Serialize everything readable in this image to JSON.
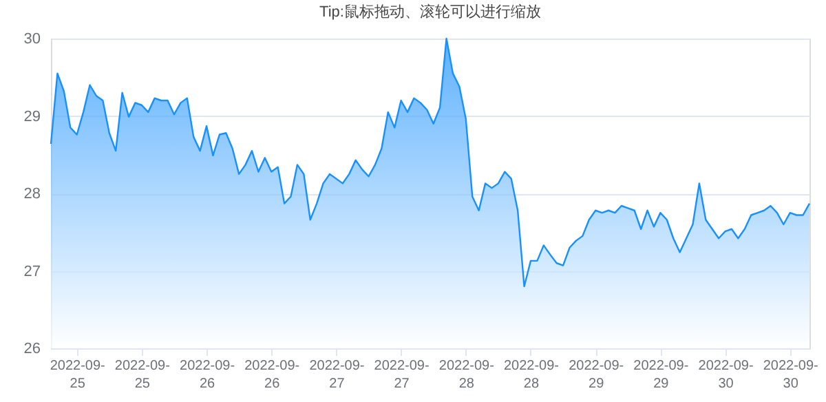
{
  "chart_data": {
    "type": "area",
    "title": "Tip:鼠标拖动、滚轮可以进行缩放",
    "categories": [
      null,
      null,
      null,
      null,
      "2022-09-25",
      null,
      null,
      null,
      null,
      null,
      null,
      null,
      null,
      null,
      "2022-09-25",
      null,
      null,
      null,
      null,
      null,
      null,
      null,
      null,
      null,
      "2022-09-26",
      null,
      null,
      null,
      null,
      null,
      null,
      null,
      null,
      null,
      "2022-09-26",
      null,
      null,
      null,
      null,
      null,
      null,
      null,
      null,
      null,
      "2022-09-27",
      null,
      null,
      null,
      null,
      null,
      null,
      null,
      null,
      null,
      "2022-09-27",
      null,
      null,
      null,
      null,
      null,
      null,
      null,
      null,
      null,
      "2022-09-28",
      null,
      null,
      null,
      null,
      null,
      null,
      null,
      null,
      null,
      "2022-09-28",
      null,
      null,
      null,
      null,
      null,
      null,
      null,
      null,
      null,
      "2022-09-29",
      null,
      null,
      null,
      null,
      null,
      null,
      null,
      null,
      null,
      "2022-09-29",
      null,
      null,
      null,
      null,
      null,
      null,
      null,
      null,
      null,
      "2022-09-30",
      null,
      null,
      null,
      null,
      null,
      null,
      null,
      null,
      null,
      "2022-09-30",
      null,
      null,
      null
    ],
    "series": [
      {
        "color": "#1890ff",
        "values": [
          28.64,
          29.55,
          29.32,
          28.85,
          28.76,
          29.05,
          29.4,
          29.26,
          29.2,
          28.78,
          28.55,
          29.3,
          28.99,
          29.17,
          29.14,
          29.05,
          29.23,
          29.2,
          29.2,
          29.02,
          29.17,
          29.23,
          28.73,
          28.55,
          28.87,
          28.49,
          28.76,
          28.78,
          28.58,
          28.25,
          28.37,
          28.55,
          28.28,
          28.46,
          28.28,
          28.34,
          27.87,
          27.96,
          28.37,
          28.25,
          27.66,
          27.87,
          28.13,
          28.25,
          28.19,
          28.13,
          28.25,
          28.43,
          28.31,
          28.22,
          28.37,
          28.58,
          29.05,
          28.85,
          29.2,
          29.05,
          29.23,
          29.17,
          29.08,
          28.9,
          29.11,
          30.0,
          29.55,
          29.38,
          28.96,
          27.96,
          27.78,
          28.13,
          28.07,
          28.13,
          28.28,
          28.19,
          27.78,
          26.8,
          27.13,
          27.13,
          27.33,
          27.21,
          27.1,
          27.07,
          27.3,
          27.39,
          27.45,
          27.66,
          27.78,
          27.75,
          27.78,
          27.75,
          27.84,
          27.81,
          27.78,
          27.54,
          27.78,
          27.57,
          27.75,
          27.66,
          27.42,
          27.24,
          27.42,
          27.6,
          28.13,
          27.66,
          27.54,
          27.42,
          27.51,
          27.54,
          27.42,
          27.54,
          27.72,
          27.75,
          27.78,
          27.84,
          27.75,
          27.6,
          27.75,
          27.72,
          27.72,
          27.87
        ]
      }
    ],
    "ylim": [
      26,
      30
    ],
    "yticks": [
      26,
      27,
      28,
      29,
      30
    ],
    "grid": "y"
  }
}
